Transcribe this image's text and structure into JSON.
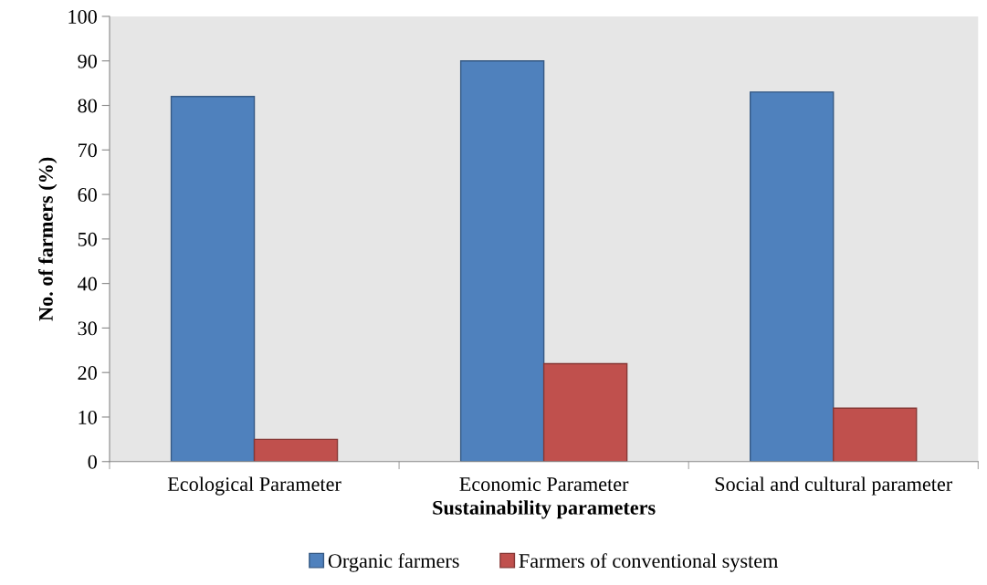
{
  "chart_data": {
    "type": "bar",
    "xlabel": "Sustainability parameters",
    "ylabel": "No. of farmers (%)",
    "categories": [
      "Ecological Parameter",
      "Economic Parameter",
      "Social and cultural parameter"
    ],
    "series": [
      {
        "name": "Organic farmers",
        "color": "#4f81bd",
        "values": [
          82,
          90,
          83
        ]
      },
      {
        "name": "Farmers of conventional system",
        "color": "#c0504d",
        "values": [
          5,
          22,
          12
        ]
      }
    ],
    "ylim": [
      0,
      100
    ],
    "yticks": [
      0,
      10,
      20,
      30,
      40,
      50,
      60,
      70,
      80,
      90,
      100
    ],
    "grid": false,
    "legend": "bottom"
  }
}
